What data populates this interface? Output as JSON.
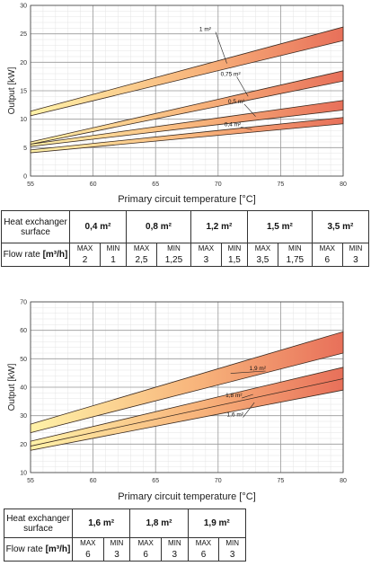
{
  "charts": [
    {
      "type": "area",
      "xlabel": "Primary circuit temperature [°C]",
      "ylabel": "Output [kW]",
      "xticks": [
        55,
        60,
        65,
        70,
        75,
        80
      ],
      "yticks": [
        0,
        5,
        10,
        15,
        20,
        25,
        30
      ],
      "xlim": [
        55,
        80
      ],
      "ylim": [
        0,
        30
      ],
      "grid": true,
      "bands": [
        {
          "label": "1 m²",
          "x": [
            55,
            80
          ],
          "max": [
            11.4,
            26.2
          ],
          "min": [
            10.6,
            23.8
          ],
          "label_at": [
            68.5,
            25.5
          ],
          "label_side": "left"
        },
        {
          "label": "0,75 m²",
          "x": [
            55,
            80
          ],
          "max": [
            6.0,
            18.5
          ],
          "min": [
            5.6,
            16.7
          ],
          "label_at": [
            70.2,
            17.6
          ],
          "label_side": "left"
        },
        {
          "label": "0,5 m²",
          "x": [
            55,
            80
          ],
          "max": [
            5.6,
            13.3
          ],
          "min": [
            5.2,
            11.6
          ],
          "label_at": [
            70.8,
            12.8
          ],
          "label_side": "left"
        },
        {
          "label": "0,4 m²",
          "x": [
            55,
            80
          ],
          "max": [
            4.6,
            10.3
          ],
          "min": [
            4.1,
            9.2
          ],
          "label_at": [
            70.5,
            8.8
          ],
          "label_side": "left"
        }
      ]
    },
    {
      "type": "area",
      "xlabel": "Primary circuit temperature [°C]",
      "ylabel": "Output [kW]",
      "xticks": [
        55,
        60,
        65,
        70,
        75,
        80
      ],
      "yticks": [
        10,
        20,
        30,
        40,
        50,
        60,
        70
      ],
      "xlim": [
        55,
        80
      ],
      "ylim": [
        10,
        70
      ],
      "grid": true,
      "bands": [
        {
          "label": "1,9 m²",
          "x": [
            55,
            80
          ],
          "max": [
            27.0,
            59.5
          ],
          "min": [
            24.0,
            52.0
          ],
          "label_at": [
            72.5,
            46.0
          ],
          "label_side": "right"
        },
        {
          "label": "1,8 m²",
          "x": [
            55,
            80
          ],
          "max": [
            21.0,
            47.0
          ],
          "min": [
            19.2,
            42.0
          ],
          "label_at": [
            70.6,
            36.5
          ],
          "label_side": "left"
        },
        {
          "label": "1,6 m²",
          "x": [
            55,
            80
          ],
          "max": [
            19.3,
            43.0
          ],
          "min": [
            17.8,
            39.0
          ],
          "label_at": [
            70.7,
            29.7
          ],
          "label_side": "left"
        }
      ]
    }
  ],
  "table1": {
    "header_label": "Heat exchanger surface",
    "flow_label": "Flow rate",
    "flow_unit": "[m³/h]",
    "max_label": "MAX",
    "min_label": "MIN",
    "columns": [
      {
        "surface": "0,4 m²",
        "max": "2",
        "min": "1"
      },
      {
        "surface": "0,8 m²",
        "max": "2,5",
        "min": "1,25"
      },
      {
        "surface": "1,2 m²",
        "max": "3",
        "min": "1,5"
      },
      {
        "surface": "1,5 m²",
        "max": "3,5",
        "min": "1,75"
      },
      {
        "surface": "3,5 m²",
        "max": "6",
        "min": "3"
      }
    ]
  },
  "table2": {
    "header_label": "Heat exchanger surface",
    "flow_label": "Flow rate",
    "flow_unit": "[m³/h]",
    "max_label": "MAX",
    "min_label": "MIN",
    "columns": [
      {
        "surface": "1,6 m²",
        "max": "6",
        "min": "3"
      },
      {
        "surface": "1,8 m²",
        "max": "6",
        "min": "3"
      },
      {
        "surface": "1,9 m²",
        "max": "6",
        "min": "3"
      }
    ]
  },
  "colors": {
    "band_light": "#fff2a8",
    "band_mid": "#f7b27a",
    "band_dark": "#e8705a",
    "grid": "#cfcfcf",
    "axis": "#444444"
  }
}
